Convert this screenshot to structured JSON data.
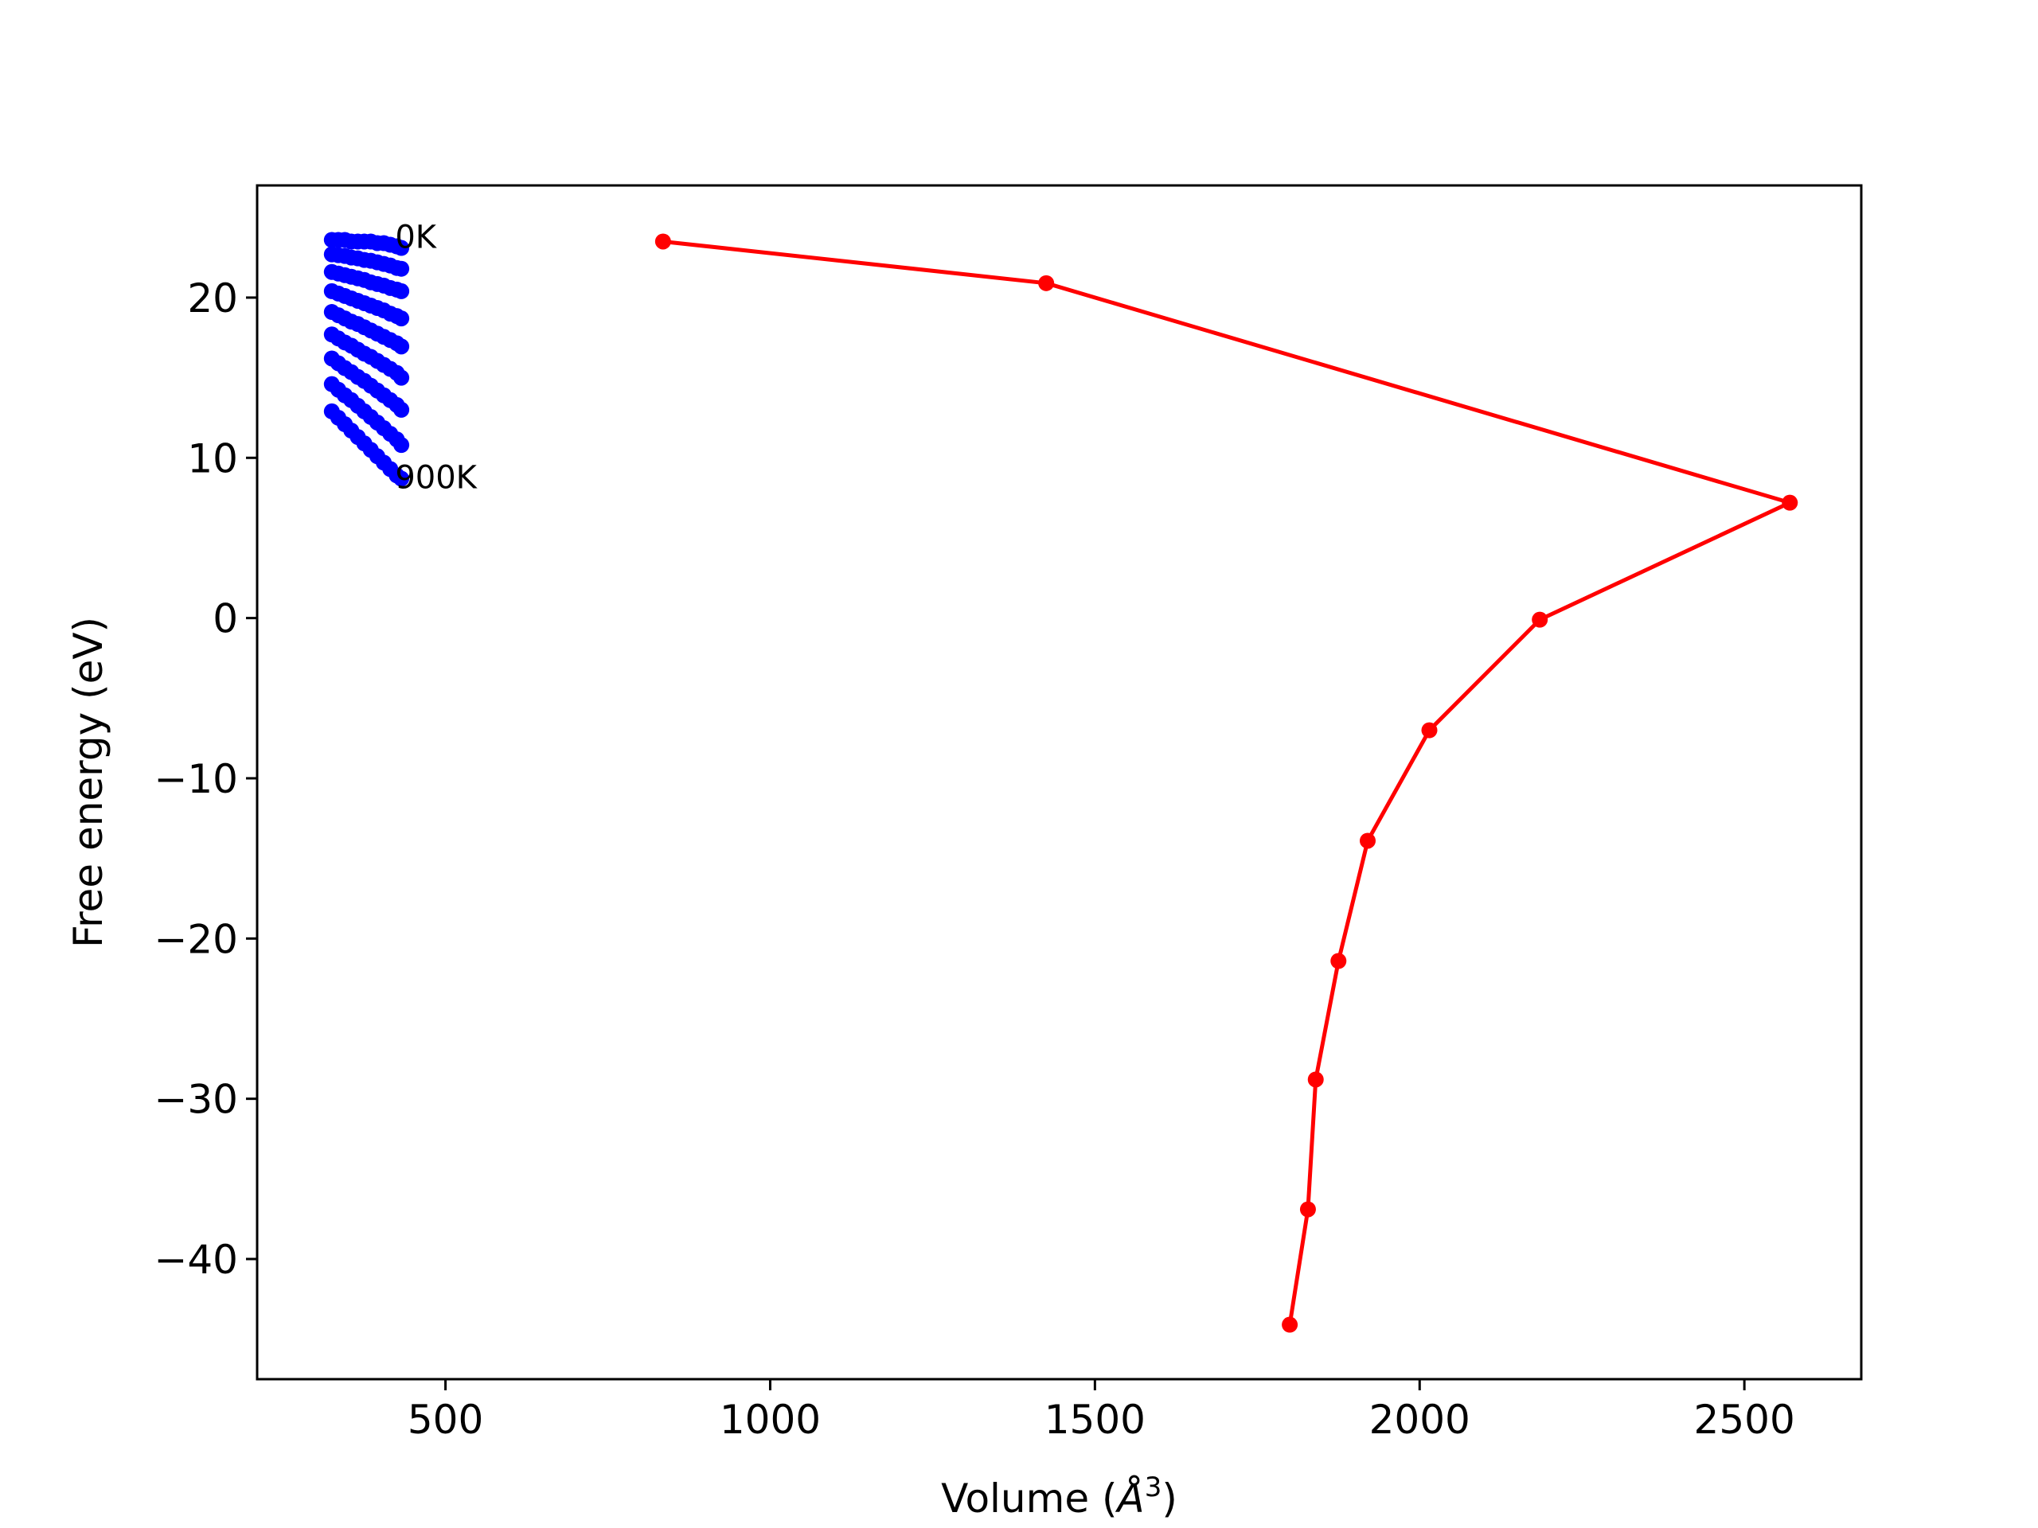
{
  "chart_data": {
    "type": "line",
    "title": "",
    "xlabel": "Volume",
    "xlabel_unit_base": "Å",
    "xlabel_unit_exp": "3",
    "ylabel": "Free energy (eV)",
    "xlim": [
      210,
      2680
    ],
    "ylim": [
      -47.5,
      27
    ],
    "xticks": [
      500,
      1000,
      1500,
      2000,
      2500
    ],
    "yticks": [
      -40,
      -30,
      -20,
      -10,
      0,
      10,
      20
    ],
    "xtick_labels": [
      "500",
      "1000",
      "1500",
      "2000",
      "2500"
    ],
    "ytick_labels": [
      "−40",
      "−30",
      "−20",
      "−10",
      "0",
      "10",
      "20"
    ],
    "grid": false,
    "legend": "none",
    "colors": {
      "curves": "#0000ff",
      "minima": "#ff0000",
      "axes": "#000000"
    },
    "annotations": [
      {
        "text": "0K",
        "x": 420,
        "y": 23.8
      },
      {
        "text": "900K",
        "x": 420,
        "y": 8.8
      }
    ],
    "series": [
      {
        "x": [
          325,
          335,
          345,
          355,
          365,
          375,
          385,
          395,
          405,
          415,
          425,
          432
        ],
        "y": [
          23.6,
          23.6,
          23.6,
          23.5,
          23.5,
          23.5,
          23.5,
          23.4,
          23.4,
          23.3,
          23.2,
          23.1
        ]
      },
      {
        "x": [
          325,
          335,
          345,
          355,
          365,
          375,
          385,
          395,
          405,
          415,
          425,
          432
        ],
        "y": [
          22.7,
          22.65,
          22.6,
          22.5,
          22.45,
          22.35,
          22.3,
          22.2,
          22.1,
          22.0,
          21.85,
          21.8
        ]
      },
      {
        "x": [
          325,
          335,
          345,
          355,
          365,
          375,
          385,
          395,
          405,
          415,
          425,
          432
        ],
        "y": [
          21.6,
          21.5,
          21.4,
          21.3,
          21.2,
          21.1,
          20.95,
          20.85,
          20.75,
          20.6,
          20.5,
          20.4
        ]
      },
      {
        "x": [
          325,
          335,
          345,
          355,
          365,
          375,
          385,
          395,
          405,
          415,
          425,
          432
        ],
        "y": [
          20.4,
          20.25,
          20.1,
          19.95,
          19.8,
          19.65,
          19.5,
          19.35,
          19.2,
          19.0,
          18.85,
          18.7
        ]
      },
      {
        "x": [
          325,
          335,
          345,
          355,
          365,
          375,
          385,
          395,
          405,
          415,
          425,
          432
        ],
        "y": [
          19.1,
          18.9,
          18.7,
          18.5,
          18.35,
          18.15,
          17.95,
          17.75,
          17.55,
          17.35,
          17.15,
          16.95
        ]
      },
      {
        "x": [
          325,
          335,
          345,
          355,
          365,
          375,
          385,
          395,
          405,
          415,
          425,
          432
        ],
        "y": [
          17.7,
          17.45,
          17.2,
          17.0,
          16.75,
          16.5,
          16.3,
          16.05,
          15.8,
          15.55,
          15.3,
          15.0
        ]
      },
      {
        "x": [
          325,
          335,
          345,
          355,
          365,
          375,
          385,
          395,
          405,
          415,
          425,
          432
        ],
        "y": [
          16.2,
          15.9,
          15.6,
          15.35,
          15.05,
          14.8,
          14.5,
          14.2,
          13.9,
          13.6,
          13.3,
          13.0
        ]
      },
      {
        "x": [
          325,
          335,
          345,
          355,
          365,
          375,
          385,
          395,
          405,
          415,
          425,
          432
        ],
        "y": [
          14.6,
          14.25,
          13.9,
          13.6,
          13.25,
          12.9,
          12.55,
          12.2,
          11.85,
          11.5,
          11.15,
          10.8
        ]
      },
      {
        "x": [
          325,
          335,
          345,
          355,
          365,
          375,
          385,
          395,
          405,
          415,
          425,
          432
        ],
        "y": [
          12.9,
          12.5,
          12.1,
          11.7,
          11.3,
          10.9,
          10.5,
          10.1,
          9.7,
          9.3,
          8.9,
          8.7
        ]
      }
    ],
    "minima_line": {
      "x": [
        835,
        1425,
        2570,
        2185,
        2015,
        1920,
        1875,
        1840,
        1828,
        1800
      ],
      "y": [
        23.5,
        20.9,
        7.2,
        -0.1,
        -7.0,
        -13.9,
        -21.4,
        -28.8,
        -36.9,
        -44.1
      ]
    }
  }
}
